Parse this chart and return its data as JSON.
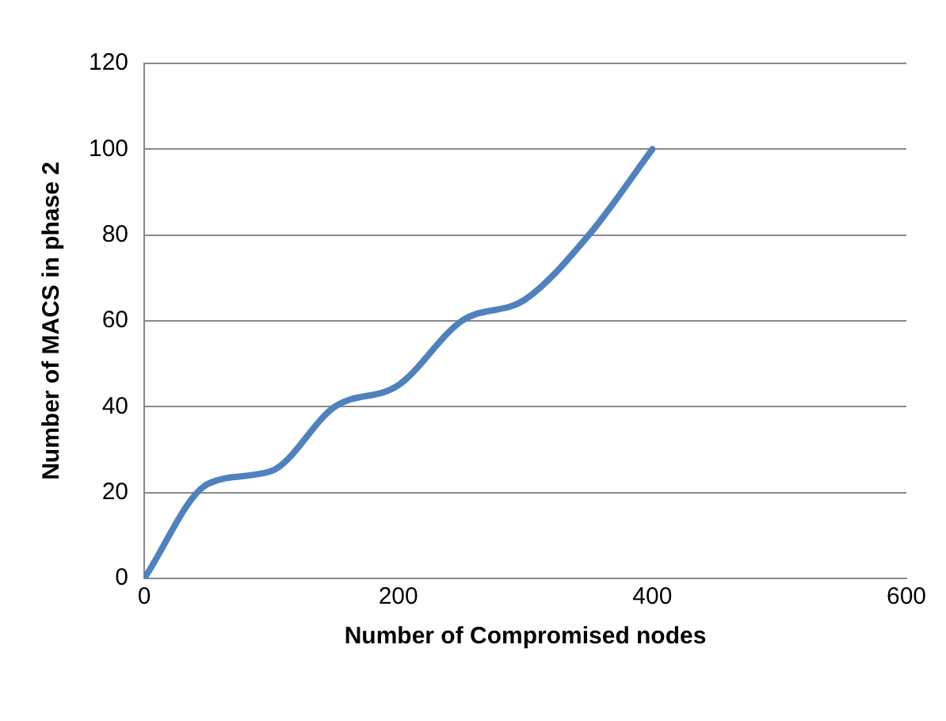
{
  "chart_data": {
    "type": "line",
    "xlabel": "Number of Compromised nodes",
    "ylabel": "Number of MACS in phase 2",
    "x": [
      0,
      50,
      100,
      150,
      200,
      250,
      300,
      350,
      400
    ],
    "series": [
      {
        "color": "#4f81bd",
        "values": [
          0,
          22,
          25,
          40,
          45,
          60,
          65,
          80,
          100
        ]
      }
    ],
    "xlim": [
      0,
      600
    ],
    "xticks": [
      0,
      200,
      400,
      600
    ],
    "ylim": [
      0,
      120
    ],
    "yticks": [
      0,
      20,
      40,
      60,
      80,
      100,
      120
    ],
    "grid": "y",
    "legend": false,
    "marker": "none",
    "line_style": "solid"
  }
}
